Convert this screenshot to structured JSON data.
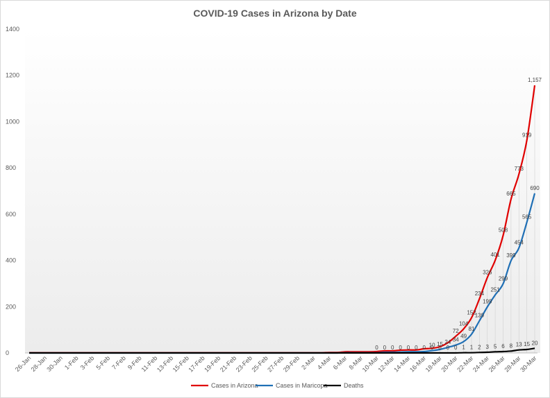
{
  "chart_data": {
    "type": "line",
    "title": "COVID-19 Cases in Arizona by Date",
    "ylim": [
      0,
      1400
    ],
    "yticks": [
      0,
      200,
      400,
      600,
      800,
      1000,
      1200,
      1400
    ],
    "x": [
      "26-Jan",
      "27-Jan",
      "28-Jan",
      "29-Jan",
      "30-Jan",
      "31-Jan",
      "1-Feb",
      "2-Feb",
      "3-Feb",
      "4-Feb",
      "5-Feb",
      "6-Feb",
      "7-Feb",
      "8-Feb",
      "9-Feb",
      "10-Feb",
      "11-Feb",
      "12-Feb",
      "13-Feb",
      "14-Feb",
      "15-Feb",
      "16-Feb",
      "17-Feb",
      "18-Feb",
      "19-Feb",
      "20-Feb",
      "21-Feb",
      "22-Feb",
      "23-Feb",
      "24-Feb",
      "25-Feb",
      "26-Feb",
      "27-Feb",
      "28-Feb",
      "29-Feb",
      "1-Mar",
      "2-Mar",
      "3-Mar",
      "4-Mar",
      "5-Mar",
      "6-Mar",
      "7-Mar",
      "8-Mar",
      "9-Mar",
      "10-Mar",
      "11-Mar",
      "12-Mar",
      "13-Mar",
      "14-Mar",
      "15-Mar",
      "16-Mar",
      "17-Mar",
      "18-Mar",
      "19-Mar",
      "20-Mar",
      "21-Mar",
      "22-Mar",
      "23-Mar",
      "24-Mar",
      "25-Mar",
      "26-Mar",
      "27-Mar",
      "28-Mar",
      "29-Mar",
      "30-Mar"
    ],
    "xtick_labels": [
      "26-Jan",
      "28-Jan",
      "30-Jan",
      "1-Feb",
      "3-Feb",
      "5-Feb",
      "7-Feb",
      "9-Feb",
      "11-Feb",
      "13-Feb",
      "15-Feb",
      "17-Feb",
      "19-Feb",
      "21-Feb",
      "23-Feb",
      "25-Feb",
      "27-Feb",
      "29-Feb",
      "2-Mar",
      "4-Mar",
      "6-Mar",
      "8-Mar",
      "10-Mar",
      "12-Mar",
      "14-Mar",
      "16-Mar",
      "18-Mar",
      "20-Mar",
      "22-Mar",
      "24-Mar",
      "26-Mar",
      "28-Mar",
      "30-Mar"
    ],
    "series": [
      {
        "name": "Cases in Arizona",
        "color": "#e00000",
        "values": [
          1,
          1,
          1,
          1,
          1,
          1,
          1,
          1,
          1,
          1,
          1,
          1,
          1,
          1,
          1,
          1,
          1,
          1,
          1,
          1,
          1,
          1,
          1,
          1,
          1,
          1,
          1,
          1,
          1,
          1,
          1,
          1,
          1,
          1,
          1,
          1,
          1,
          1,
          2,
          2,
          5,
          5,
          5,
          5,
          6,
          9,
          9,
          12,
          13,
          13,
          18,
          20,
          27,
          44,
          72,
          104,
          152,
          234,
          326,
          401,
          508,
          665,
          773,
          919,
          1157
        ],
        "labels": [
          {
            "x": "20-Mar",
            "text": "72"
          },
          {
            "x": "21-Mar",
            "text": "104"
          },
          {
            "x": "22-Mar",
            "text": "152"
          },
          {
            "x": "23-Mar",
            "text": "234"
          },
          {
            "x": "24-Mar",
            "text": "326"
          },
          {
            "x": "25-Mar",
            "text": "401"
          },
          {
            "x": "26-Mar",
            "text": "508"
          },
          {
            "x": "27-Mar",
            "text": "665"
          },
          {
            "x": "28-Mar",
            "text": "773"
          },
          {
            "x": "29-Mar",
            "text": "919"
          },
          {
            "x": "30-Mar",
            "text": "1,157"
          }
        ]
      },
      {
        "name": "Cases in Maricopa",
        "color": "#1f6fb5",
        "values": [
          0,
          0,
          0,
          0,
          0,
          0,
          0,
          0,
          0,
          0,
          0,
          0,
          0,
          0,
          0,
          0,
          0,
          0,
          0,
          0,
          0,
          0,
          0,
          0,
          0,
          0,
          0,
          0,
          0,
          0,
          0,
          0,
          0,
          0,
          0,
          0,
          0,
          0,
          0,
          0,
          1,
          1,
          1,
          1,
          1,
          3,
          3,
          4,
          5,
          5,
          6,
          10,
          15,
          24,
          34,
          49,
          81,
          139,
          199,
          251,
          299,
          399,
          454,
          565,
          690
        ],
        "labels": [
          {
            "x": "17-Mar",
            "text": "10"
          },
          {
            "x": "18-Mar",
            "text": "15"
          },
          {
            "x": "19-Mar",
            "text": "24"
          },
          {
            "x": "20-Mar",
            "text": "34"
          },
          {
            "x": "21-Mar",
            "text": "49"
          },
          {
            "x": "22-Mar",
            "text": "81"
          },
          {
            "x": "23-Mar",
            "text": "139"
          },
          {
            "x": "24-Mar",
            "text": "199"
          },
          {
            "x": "25-Mar",
            "text": "251"
          },
          {
            "x": "26-Mar",
            "text": "299"
          },
          {
            "x": "27-Mar",
            "text": "399"
          },
          {
            "x": "28-Mar",
            "text": "454"
          },
          {
            "x": "29-Mar",
            "text": "565"
          },
          {
            "x": "30-Mar",
            "text": "690"
          }
        ]
      },
      {
        "name": "Deaths",
        "color": "#000000",
        "values": [
          0,
          0,
          0,
          0,
          0,
          0,
          0,
          0,
          0,
          0,
          0,
          0,
          0,
          0,
          0,
          0,
          0,
          0,
          0,
          0,
          0,
          0,
          0,
          0,
          0,
          0,
          0,
          0,
          0,
          0,
          0,
          0,
          0,
          0,
          0,
          0,
          0,
          0,
          0,
          0,
          0,
          0,
          0,
          0,
          0,
          0,
          0,
          0,
          0,
          0,
          0,
          0,
          0,
          0,
          0,
          1,
          1,
          2,
          3,
          5,
          6,
          8,
          13,
          15,
          20
        ],
        "labels": [
          {
            "x": "10-Mar",
            "text": "0"
          },
          {
            "x": "11-Mar",
            "text": "0"
          },
          {
            "x": "12-Mar",
            "text": "0"
          },
          {
            "x": "13-Mar",
            "text": "0"
          },
          {
            "x": "14-Mar",
            "text": "0"
          },
          {
            "x": "15-Mar",
            "text": "0"
          },
          {
            "x": "16-Mar",
            "text": "0"
          },
          {
            "x": "17-Mar",
            "text": "0"
          },
          {
            "x": "18-Mar",
            "text": "0"
          },
          {
            "x": "19-Mar",
            "text": "0"
          },
          {
            "x": "20-Mar",
            "text": "0"
          },
          {
            "x": "21-Mar",
            "text": "1"
          },
          {
            "x": "22-Mar",
            "text": "1"
          },
          {
            "x": "23-Mar",
            "text": "2"
          },
          {
            "x": "24-Mar",
            "text": "3"
          },
          {
            "x": "25-Mar",
            "text": "5"
          },
          {
            "x": "26-Mar",
            "text": "6"
          },
          {
            "x": "27-Mar",
            "text": "8"
          },
          {
            "x": "28-Mar",
            "text": "13"
          },
          {
            "x": "29-Mar",
            "text": "15"
          },
          {
            "x": "30-Mar",
            "text": "20"
          }
        ]
      }
    ],
    "legend": "bottom",
    "grid": false
  }
}
